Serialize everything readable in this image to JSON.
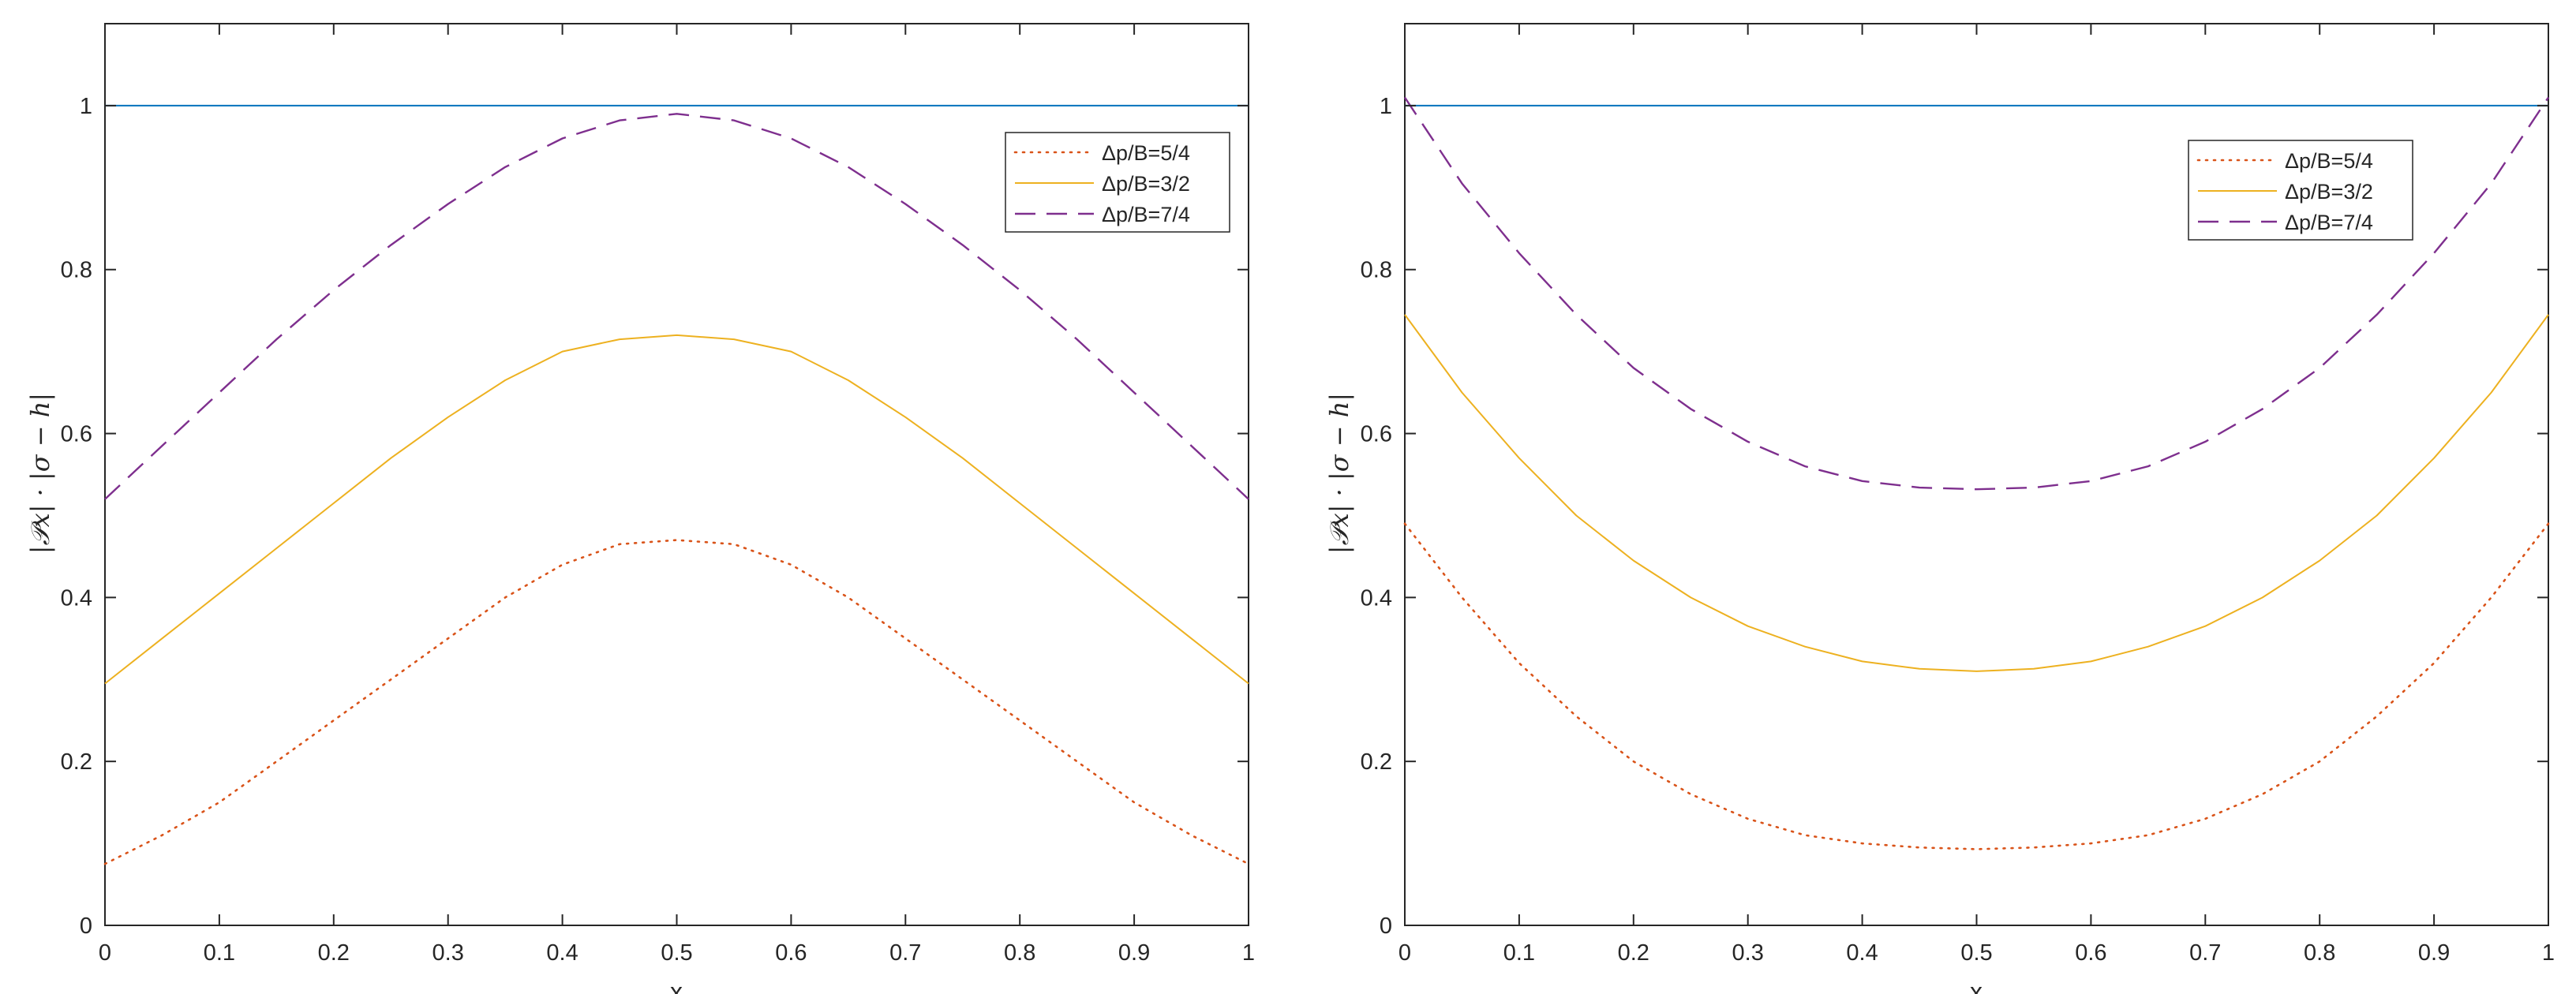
{
  "chart_data": [
    {
      "type": "line",
      "title": "",
      "xlabel": "x",
      "ylabel": "|𝒫x| · |σ − h|",
      "xlim": [
        0,
        1
      ],
      "ylim": [
        0,
        1.1
      ],
      "xticks": [
        "0",
        "0.1",
        "0.2",
        "0.3",
        "0.4",
        "0.5",
        "0.6",
        "0.7",
        "0.8",
        "0.9",
        "1"
      ],
      "yticks": [
        "0",
        "0.2",
        "0.4",
        "0.6",
        "0.8",
        "1"
      ],
      "grid": false,
      "legend_position": "top-right",
      "x": [
        0,
        0.05,
        0.1,
        0.15,
        0.2,
        0.25,
        0.3,
        0.35,
        0.4,
        0.45,
        0.5,
        0.55,
        0.6,
        0.65,
        0.7,
        0.75,
        0.8,
        0.85,
        0.9,
        0.95,
        1
      ],
      "series": [
        {
          "name": "",
          "style": "solid",
          "color": "#0072BD",
          "values": [
            1,
            1,
            1,
            1,
            1,
            1,
            1,
            1,
            1,
            1,
            1,
            1,
            1,
            1,
            1,
            1,
            1,
            1,
            1,
            1,
            1
          ]
        },
        {
          "name": "Δp/B=5/4",
          "style": "dotted",
          "color": "#D95319",
          "values": [
            0.075,
            0.11,
            0.15,
            0.2,
            0.25,
            0.3,
            0.35,
            0.4,
            0.44,
            0.465,
            0.47,
            0.465,
            0.44,
            0.4,
            0.35,
            0.3,
            0.25,
            0.2,
            0.15,
            0.11,
            0.075
          ]
        },
        {
          "name": "Δp/B=3/2",
          "style": "solid",
          "color": "#EDB120",
          "values": [
            0.295,
            0.35,
            0.405,
            0.46,
            0.515,
            0.57,
            0.62,
            0.665,
            0.7,
            0.715,
            0.72,
            0.715,
            0.7,
            0.665,
            0.62,
            0.57,
            0.515,
            0.46,
            0.405,
            0.35,
            0.295
          ]
        },
        {
          "name": "Δp/B=7/4",
          "style": "dashed",
          "color": "#7E2F8E",
          "values": [
            0.52,
            0.585,
            0.65,
            0.715,
            0.775,
            0.83,
            0.88,
            0.925,
            0.96,
            0.982,
            0.99,
            0.982,
            0.96,
            0.925,
            0.88,
            0.83,
            0.775,
            0.715,
            0.65,
            0.585,
            0.52
          ]
        }
      ],
      "legend_entries": [
        "Δp/B=5/4",
        "Δp/B=3/2",
        "Δp/B=7/4"
      ]
    },
    {
      "type": "line",
      "title": "",
      "xlabel": "x",
      "ylabel": "|𝒫x| · |σ − h|",
      "xlim": [
        0,
        1
      ],
      "ylim": [
        0,
        1.1
      ],
      "xticks": [
        "0",
        "0.1",
        "0.2",
        "0.3",
        "0.4",
        "0.5",
        "0.6",
        "0.7",
        "0.8",
        "0.9",
        "1"
      ],
      "yticks": [
        "0",
        "0.2",
        "0.4",
        "0.6",
        "0.8",
        "1"
      ],
      "grid": false,
      "legend_position": "top-right",
      "x": [
        0,
        0.05,
        0.1,
        0.15,
        0.2,
        0.25,
        0.3,
        0.35,
        0.4,
        0.45,
        0.5,
        0.55,
        0.6,
        0.65,
        0.7,
        0.75,
        0.8,
        0.85,
        0.9,
        0.95,
        1
      ],
      "series": [
        {
          "name": "",
          "style": "solid",
          "color": "#0072BD",
          "values": [
            1,
            1,
            1,
            1,
            1,
            1,
            1,
            1,
            1,
            1,
            1,
            1,
            1,
            1,
            1,
            1,
            1,
            1,
            1,
            1,
            1
          ]
        },
        {
          "name": "Δp/B=5/4",
          "style": "dotted",
          "color": "#D95319",
          "values": [
            0.49,
            0.4,
            0.32,
            0.255,
            0.2,
            0.16,
            0.13,
            0.11,
            0.1,
            0.095,
            0.093,
            0.095,
            0.1,
            0.11,
            0.13,
            0.16,
            0.2,
            0.255,
            0.32,
            0.4,
            0.49
          ]
        },
        {
          "name": "Δp/B=3/2",
          "style": "solid",
          "color": "#EDB120",
          "values": [
            0.745,
            0.65,
            0.57,
            0.5,
            0.445,
            0.4,
            0.365,
            0.34,
            0.322,
            0.313,
            0.31,
            0.313,
            0.322,
            0.34,
            0.365,
            0.4,
            0.445,
            0.5,
            0.57,
            0.65,
            0.745
          ]
        },
        {
          "name": "Δp/B=7/4",
          "style": "dashed",
          "color": "#7E2F8E",
          "values": [
            1.01,
            0.905,
            0.82,
            0.745,
            0.68,
            0.63,
            0.59,
            0.56,
            0.542,
            0.534,
            0.532,
            0.534,
            0.542,
            0.56,
            0.59,
            0.63,
            0.68,
            0.745,
            0.82,
            0.905,
            1.01
          ]
        }
      ],
      "legend_entries": [
        "Δp/B=5/4",
        "Δp/B=3/2",
        "Δp/B=7/4"
      ]
    }
  ]
}
